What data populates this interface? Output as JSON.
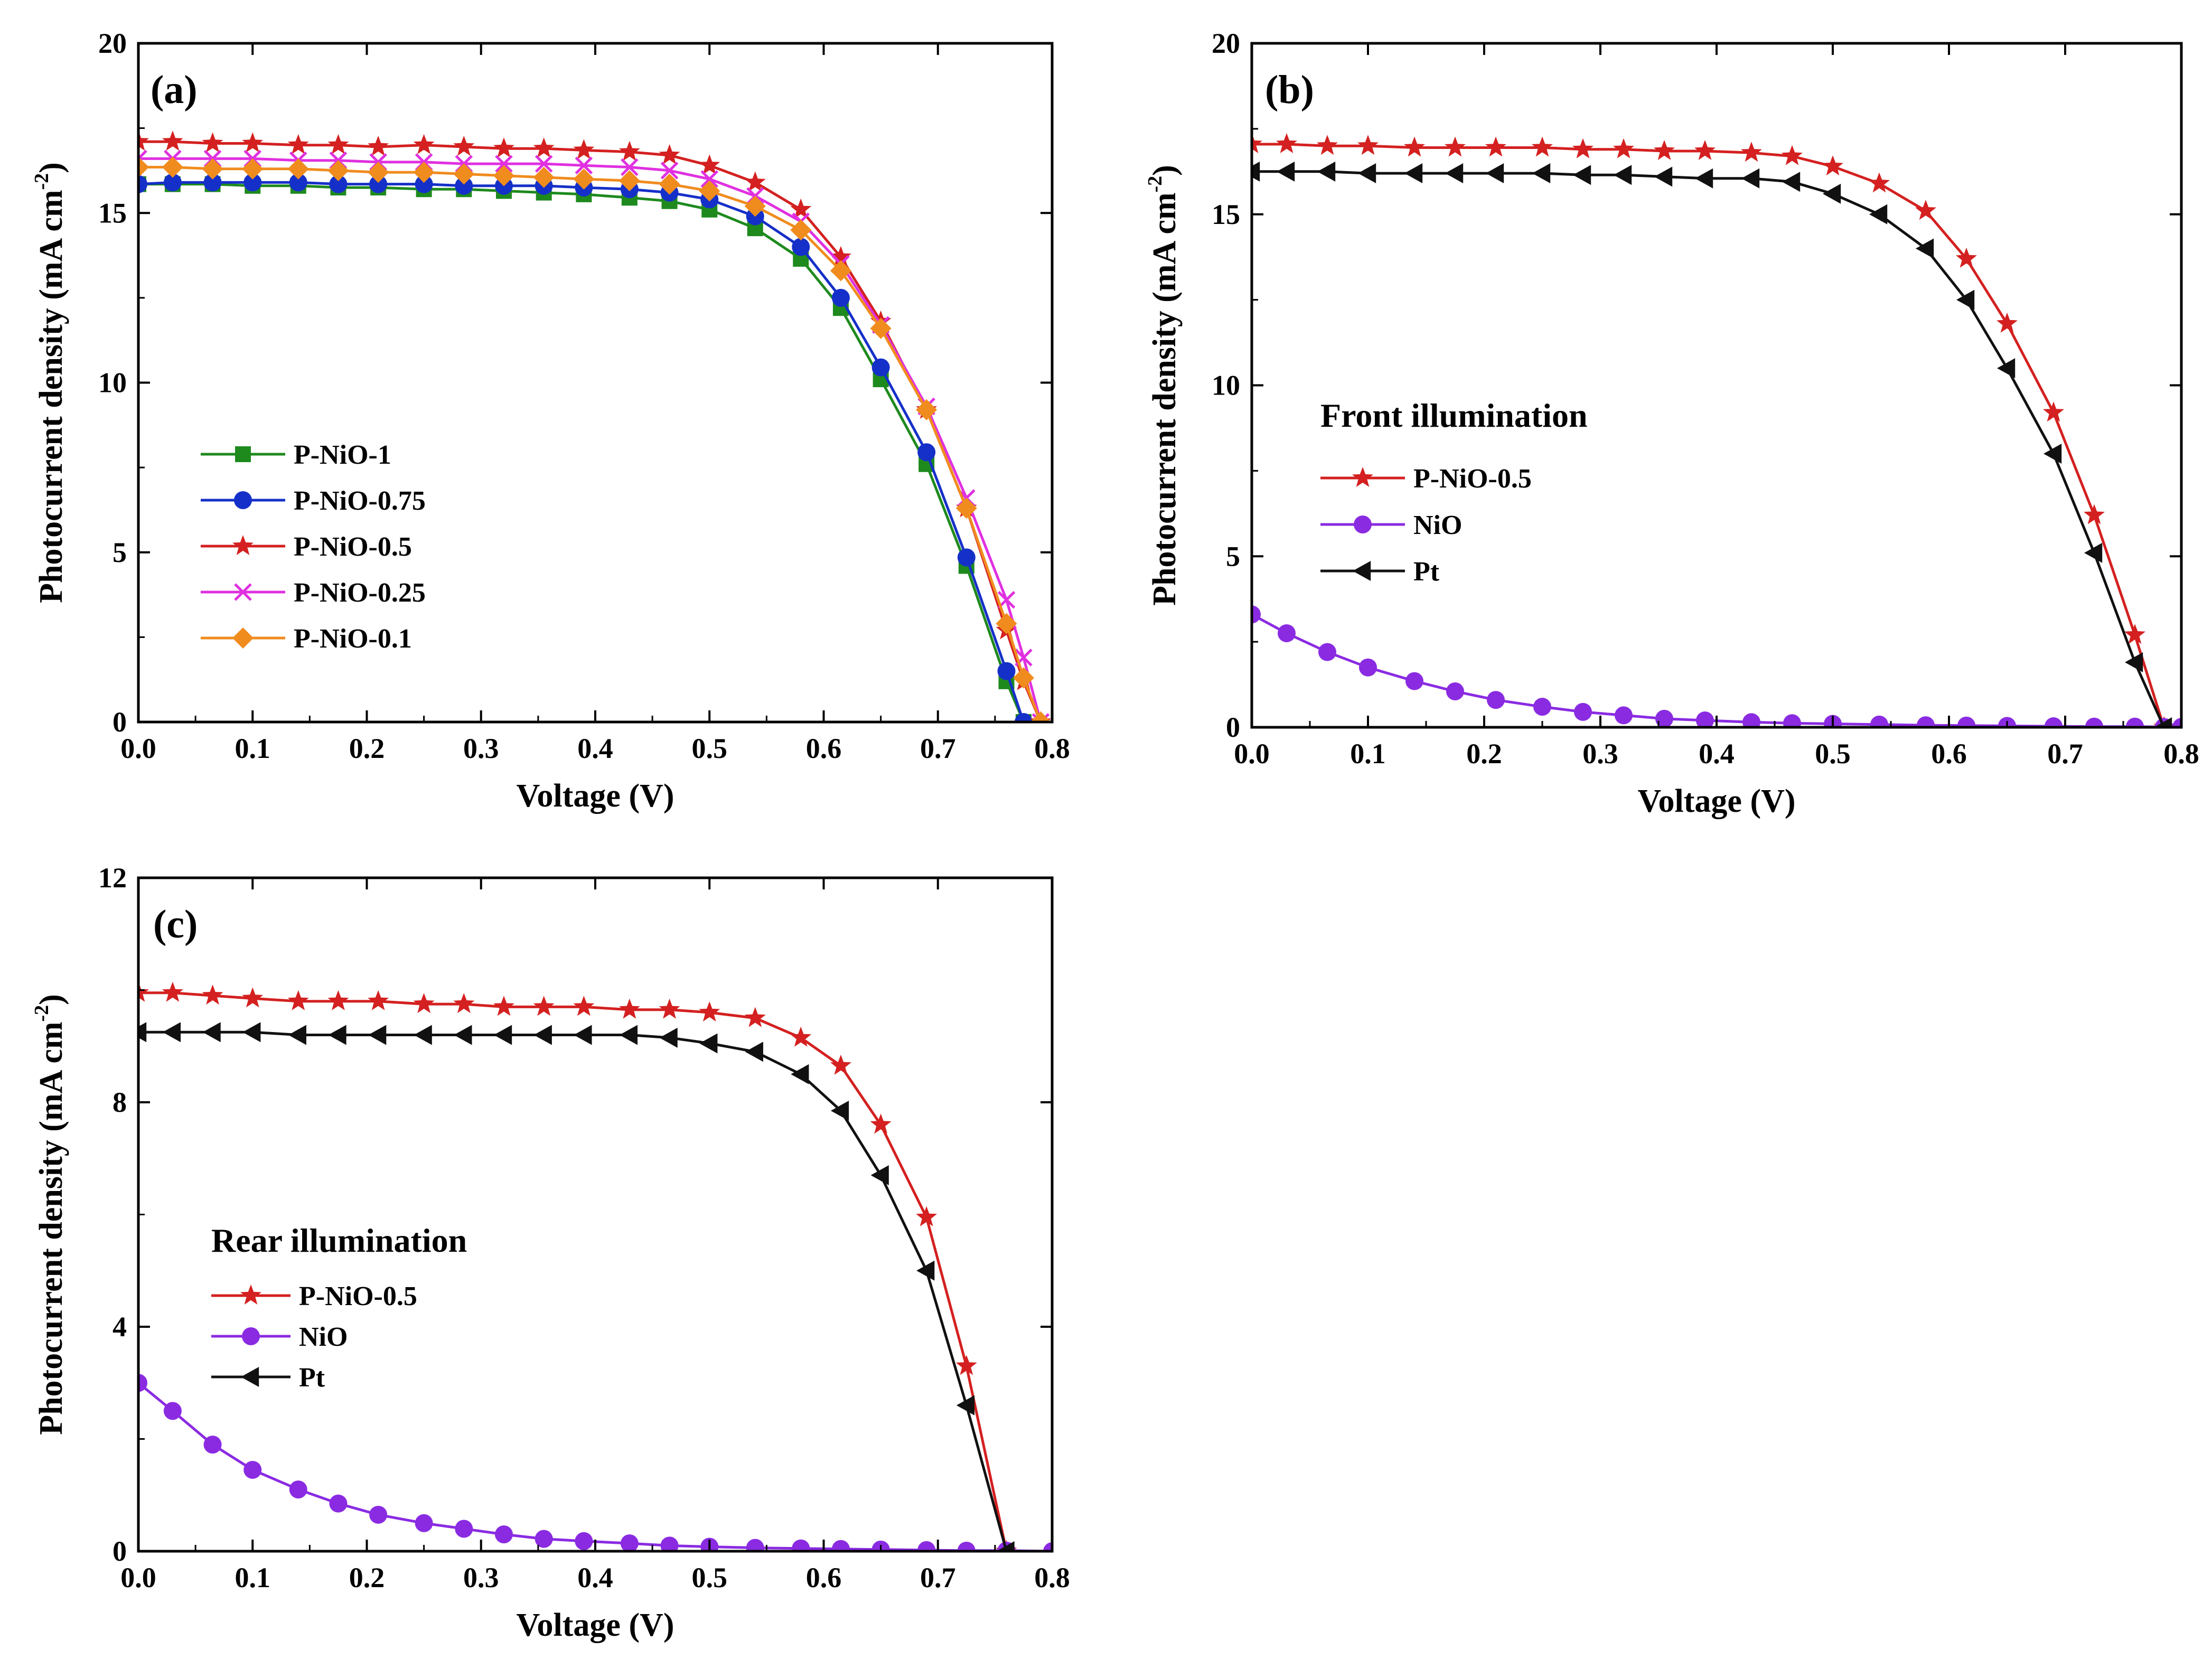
{
  "chart_data": [
    {
      "type": "line",
      "panel_label": "(a)",
      "xlabel": "Voltage (V)",
      "ylabel_main": "Photocurrent density (mA cm",
      "ylabel_sup": "-2",
      "ylabel_close": ")",
      "xlim": [
        0.0,
        0.8
      ],
      "ylim": [
        0,
        20
      ],
      "xticks": [
        "0.0",
        "0.1",
        "0.2",
        "0.3",
        "0.4",
        "0.5",
        "0.6",
        "0.7",
        "0.8"
      ],
      "yticks": [
        "0",
        "5",
        "10",
        "15",
        "20"
      ],
      "x": [
        0.0,
        0.03,
        0.065,
        0.1,
        0.14,
        0.175,
        0.21,
        0.25,
        0.285,
        0.32,
        0.355,
        0.39,
        0.43,
        0.465,
        0.5,
        0.54,
        0.58,
        0.615,
        0.65,
        0.69,
        0.725,
        0.76,
        0.775,
        0.79
      ],
      "series": [
        {
          "name": "P-NiO-1",
          "color": "#1e8a1e",
          "marker": "square",
          "values": [
            15.85,
            15.85,
            15.85,
            15.8,
            15.8,
            15.75,
            15.75,
            15.7,
            15.7,
            15.65,
            15.6,
            15.55,
            15.45,
            15.35,
            15.1,
            14.55,
            13.65,
            12.2,
            10.1,
            7.6,
            4.6,
            1.2,
            0.0,
            null
          ]
        },
        {
          "name": "P-NiO-0.75",
          "color": "#1530c8",
          "marker": "circle",
          "values": [
            15.85,
            15.9,
            15.9,
            15.9,
            15.9,
            15.85,
            15.85,
            15.85,
            15.8,
            15.8,
            15.8,
            15.75,
            15.7,
            15.6,
            15.4,
            14.9,
            14.0,
            12.5,
            10.45,
            7.95,
            4.85,
            1.5,
            0.0,
            null
          ]
        },
        {
          "name": "P-NiO-0.5",
          "color": "#d42020",
          "marker": "star",
          "values": [
            17.1,
            17.1,
            17.05,
            17.05,
            17.0,
            17.0,
            16.95,
            17.0,
            16.95,
            16.9,
            16.9,
            16.85,
            16.8,
            16.7,
            16.4,
            15.9,
            15.1,
            13.7,
            11.8,
            9.2,
            6.3,
            2.7,
            1.2,
            0.0
          ]
        },
        {
          "name": "P-NiO-0.25",
          "color": "#e030e0",
          "marker": "cross",
          "values": [
            16.6,
            16.6,
            16.6,
            16.6,
            16.55,
            16.55,
            16.5,
            16.5,
            16.45,
            16.45,
            16.45,
            16.4,
            16.35,
            16.25,
            16.0,
            15.5,
            14.75,
            13.5,
            11.7,
            9.3,
            6.6,
            3.6,
            1.9,
            0.0
          ]
        },
        {
          "name": "P-NiO-0.1",
          "color": "#f08c1e",
          "marker": "diamond",
          "values": [
            16.35,
            16.35,
            16.3,
            16.3,
            16.3,
            16.25,
            16.2,
            16.2,
            16.15,
            16.1,
            16.05,
            16.0,
            15.95,
            15.85,
            15.65,
            15.2,
            14.5,
            13.3,
            11.6,
            9.2,
            6.3,
            2.9,
            1.3,
            0.0
          ]
        }
      ]
    },
    {
      "type": "line",
      "panel_label": "(b)",
      "annotation": "Front illumination",
      "xlabel": "Voltage (V)",
      "ylabel_main": "Photocurrent density (mA cm",
      "ylabel_sup": "-2",
      "ylabel_close": ")",
      "xlim": [
        0.0,
        0.8
      ],
      "ylim": [
        0,
        20
      ],
      "xticks": [
        "0.0",
        "0.1",
        "0.2",
        "0.3",
        "0.4",
        "0.5",
        "0.6",
        "0.7",
        "0.8"
      ],
      "yticks": [
        "0",
        "5",
        "10",
        "15",
        "20"
      ],
      "x": [
        0.0,
        0.03,
        0.065,
        0.1,
        0.14,
        0.175,
        0.21,
        0.25,
        0.285,
        0.32,
        0.355,
        0.39,
        0.43,
        0.465,
        0.5,
        0.54,
        0.58,
        0.615,
        0.65,
        0.69,
        0.725,
        0.76,
        0.785,
        0.8
      ],
      "series": [
        {
          "name": "P-NiO-0.5",
          "color": "#d42020",
          "marker": "star",
          "values": [
            17.05,
            17.05,
            17.0,
            17.0,
            16.95,
            16.95,
            16.95,
            16.95,
            16.9,
            16.9,
            16.85,
            16.85,
            16.8,
            16.7,
            16.4,
            15.9,
            15.1,
            13.7,
            11.8,
            9.2,
            6.2,
            2.7,
            0.0,
            null
          ]
        },
        {
          "name": "NiO",
          "color": "#8a2be2",
          "marker": "circle",
          "values": [
            3.3,
            2.75,
            2.2,
            1.75,
            1.35,
            1.05,
            0.8,
            0.6,
            0.45,
            0.35,
            0.25,
            0.2,
            0.15,
            0.12,
            0.1,
            0.08,
            0.06,
            0.05,
            0.04,
            0.03,
            0.02,
            0.02,
            0.01,
            0.01
          ]
        },
        {
          "name": "Pt",
          "color": "#111111",
          "marker": "triangle-left",
          "values": [
            16.25,
            16.25,
            16.25,
            16.2,
            16.2,
            16.2,
            16.2,
            16.2,
            16.15,
            16.15,
            16.1,
            16.05,
            16.05,
            15.95,
            15.6,
            15.0,
            14.0,
            12.5,
            10.5,
            8.0,
            5.1,
            1.9,
            0.0,
            null
          ]
        }
      ]
    },
    {
      "type": "line",
      "panel_label": "(c)",
      "annotation": "Rear illumination",
      "xlabel": "Voltage (V)",
      "ylabel_main": "Photocurrent density (mA cm",
      "ylabel_sup": "-2",
      "ylabel_close": ")",
      "xlim": [
        0.0,
        0.8
      ],
      "ylim": [
        0,
        12
      ],
      "xticks": [
        "0.0",
        "0.1",
        "0.2",
        "0.3",
        "0.4",
        "0.5",
        "0.6",
        "0.7",
        "0.8"
      ],
      "yticks": [
        "0",
        "4",
        "8",
        "12"
      ],
      "x": [
        0.0,
        0.03,
        0.065,
        0.1,
        0.14,
        0.175,
        0.21,
        0.25,
        0.285,
        0.32,
        0.355,
        0.39,
        0.43,
        0.465,
        0.5,
        0.54,
        0.58,
        0.615,
        0.65,
        0.69,
        0.725,
        0.76,
        0.8
      ],
      "series": [
        {
          "name": "P-NiO-0.5",
          "color": "#d42020",
          "marker": "star",
          "values": [
            9.95,
            9.95,
            9.9,
            9.85,
            9.8,
            9.8,
            9.8,
            9.75,
            9.75,
            9.7,
            9.7,
            9.7,
            9.65,
            9.65,
            9.6,
            9.5,
            9.15,
            8.65,
            7.6,
            5.95,
            3.3,
            0.0,
            null
          ]
        },
        {
          "name": "NiO",
          "color": "#8a2be2",
          "marker": "circle",
          "values": [
            3.0,
            2.5,
            1.9,
            1.45,
            1.1,
            0.85,
            0.65,
            0.5,
            0.4,
            0.3,
            0.22,
            0.18,
            0.14,
            0.1,
            0.08,
            0.06,
            0.05,
            0.04,
            0.03,
            0.02,
            0.01,
            0.01,
            0.0
          ]
        },
        {
          "name": "Pt",
          "color": "#111111",
          "marker": "triangle-left",
          "values": [
            9.25,
            9.25,
            9.25,
            9.25,
            9.2,
            9.2,
            9.2,
            9.2,
            9.2,
            9.2,
            9.2,
            9.2,
            9.2,
            9.15,
            9.05,
            8.9,
            8.5,
            7.85,
            6.7,
            5.0,
            2.6,
            0.0,
            null
          ]
        }
      ]
    }
  ]
}
